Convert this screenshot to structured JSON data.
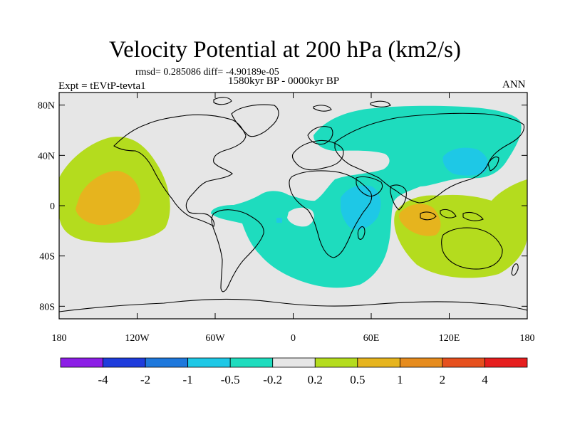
{
  "header": {
    "title": "Velocity Potential at 200 hPa (km2/s)",
    "stats": "rmsd= 0.285086 diff= -4.90189e-05",
    "period": "1580kyr BP - 0000kyr BP",
    "experiment": "Expt = tEVtP-tevta1",
    "season": "ANN"
  },
  "map": {
    "lon_ticks": [
      "180",
      "120W",
      "60W",
      "0",
      "60E",
      "120E",
      "180"
    ],
    "lat_ticks": [
      "80N",
      "40N",
      "0",
      "40S",
      "80S"
    ],
    "background_color": "#e6e6e6",
    "coastline_color": "#000000"
  },
  "colorbar": {
    "colors": [
      "#8c1ee6",
      "#1e3cdc",
      "#1e78dc",
      "#1ec8e6",
      "#1edcbe",
      "#e6e6e6",
      "#b4dc1e",
      "#e6b41e",
      "#e68c1e",
      "#e6501e",
      "#e61e1e"
    ],
    "labels": [
      "-4",
      "-2",
      "-1",
      "-0.5",
      "-0.2",
      "0.2",
      "0.5",
      "1",
      "2",
      "4"
    ]
  }
}
